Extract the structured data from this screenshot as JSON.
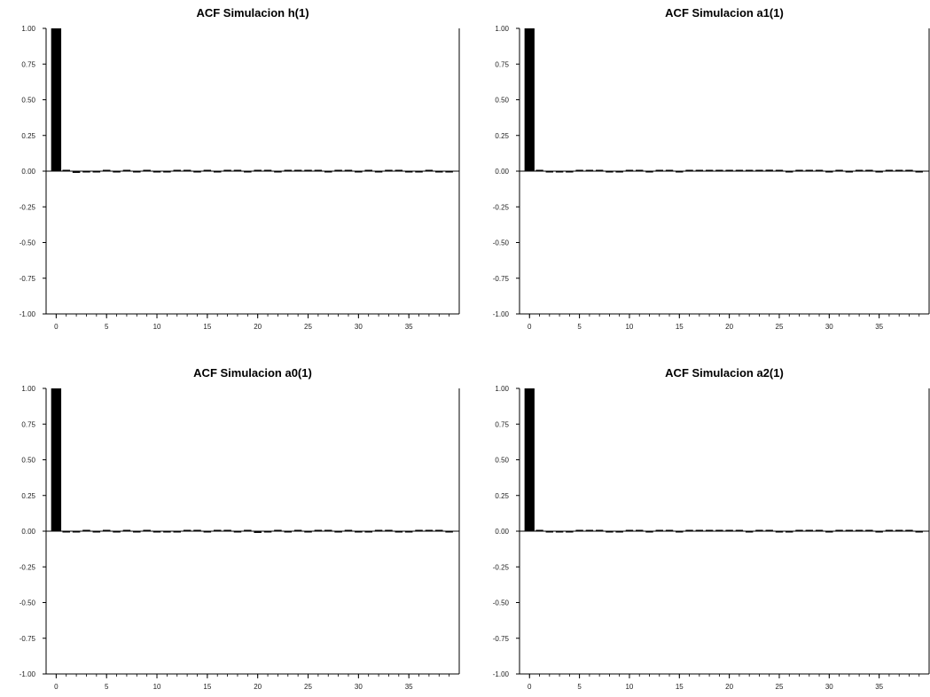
{
  "chart_data": [
    {
      "type": "bar",
      "title": "ACF Simulacion h(1)",
      "xlabel": "",
      "ylabel": "",
      "ylim": [
        -1.0,
        1.0
      ],
      "xlim": [
        -1,
        40
      ],
      "y_ticks": [
        "1.00",
        "0.75",
        "0.50",
        "0.25",
        "0.00",
        "-0.25",
        "-0.50",
        "-0.75",
        "-1.00"
      ],
      "x_ticks": [
        "0",
        "5",
        "10",
        "15",
        "20",
        "25",
        "30",
        "35"
      ],
      "grid": false,
      "lags": [
        0,
        1,
        2,
        3,
        4,
        5,
        6,
        7,
        8,
        9,
        10,
        11,
        12,
        13,
        14,
        15,
        16,
        17,
        18,
        19,
        20,
        21,
        22,
        23,
        24,
        25,
        26,
        27,
        28,
        29,
        30,
        31,
        32,
        33,
        34,
        35,
        36,
        37,
        38,
        39
      ],
      "values": [
        1.0,
        0.006,
        -0.012,
        -0.004,
        -0.003,
        0.004,
        -0.003,
        0.002,
        -0.003,
        0.002,
        -0.003,
        -0.002,
        0.002,
        0.004,
        -0.003,
        0.003,
        -0.004,
        0.002,
        0.003,
        -0.006,
        0.004,
        0.008,
        -0.003,
        0.009,
        0.004,
        0.003,
        0.003,
        -0.002,
        0.004,
        0.003,
        -0.003,
        0.003,
        -0.002,
        0.004,
        0.003,
        -0.002,
        -0.003,
        0.002,
        -0.003,
        -0.002
      ]
    },
    {
      "type": "bar",
      "title": "ACF Simulacion a1(1)",
      "xlabel": "",
      "ylabel": "",
      "ylim": [
        -1.0,
        1.0
      ],
      "xlim": [
        -1,
        40
      ],
      "y_ticks": [
        "1.00",
        "0.75",
        "0.50",
        "0.25",
        "0.00",
        "-0.25",
        "-0.50",
        "-0.75",
        "-1.00"
      ],
      "x_ticks": [
        "0",
        "5",
        "10",
        "15",
        "20",
        "25",
        "30",
        "35"
      ],
      "grid": false,
      "lags": [
        0,
        1,
        2,
        3,
        4,
        5,
        6,
        7,
        8,
        9,
        10,
        11,
        12,
        13,
        14,
        15,
        16,
        17,
        18,
        19,
        20,
        21,
        22,
        23,
        24,
        25,
        26,
        27,
        28,
        29,
        30,
        31,
        32,
        33,
        34,
        35,
        36,
        37,
        38,
        39
      ],
      "values": [
        1.0,
        0.004,
        -0.002,
        -0.003,
        -0.005,
        0.004,
        0.002,
        0.006,
        -0.003,
        -0.006,
        0.003,
        0.005,
        -0.002,
        0.003,
        0.004,
        -0.003,
        0.003,
        0.004,
        0.002,
        0.003,
        0.004,
        0.003,
        0.005,
        0.004,
        0.01,
        0.004,
        -0.003,
        0.003,
        0.002,
        0.003,
        -0.002,
        0.003,
        -0.002,
        0.004,
        0.002,
        -0.003,
        0.003,
        0.004,
        0.002,
        -0.002
      ]
    },
    {
      "type": "bar",
      "title": "ACF Simulacion a0(1)",
      "xlabel": "",
      "ylabel": "",
      "ylim": [
        -1.0,
        1.0
      ],
      "xlim": [
        -1,
        40
      ],
      "y_ticks": [
        "1.00",
        "0.75",
        "0.50",
        "0.25",
        "0.00",
        "-0.25",
        "-0.50",
        "-0.75",
        "-1.00"
      ],
      "x_ticks": [
        "0",
        "5",
        "10",
        "15",
        "20",
        "25",
        "30",
        "35"
      ],
      "grid": false,
      "lags": [
        0,
        1,
        2,
        3,
        4,
        5,
        6,
        7,
        8,
        9,
        10,
        11,
        12,
        13,
        14,
        15,
        16,
        17,
        18,
        19,
        20,
        21,
        22,
        23,
        24,
        25,
        26,
        27,
        28,
        29,
        30,
        31,
        32,
        33,
        34,
        35,
        36,
        37,
        38,
        39
      ],
      "values": [
        1.0,
        -0.003,
        -0.008,
        0.003,
        -0.002,
        0.003,
        -0.003,
        0.008,
        -0.004,
        0.006,
        -0.003,
        -0.005,
        -0.002,
        0.003,
        0.002,
        -0.003,
        0.003,
        0.008,
        -0.002,
        0.003,
        -0.012,
        -0.003,
        0.002,
        -0.004,
        0.003,
        -0.003,
        0.003,
        0.002,
        -0.003,
        0.004,
        -0.007,
        -0.006,
        0.003,
        0.004,
        -0.003,
        -0.004,
        0.003,
        0.006,
        0.004,
        -0.003
      ]
    },
    {
      "type": "bar",
      "title": "ACF Simulacion a2(1)",
      "xlabel": "",
      "ylabel": "",
      "ylim": [
        -1.0,
        1.0
      ],
      "xlim": [
        -1,
        40
      ],
      "y_ticks": [
        "1.00",
        "0.75",
        "0.50",
        "0.25",
        "0.00",
        "-0.25",
        "-0.50",
        "-0.75",
        "-1.00"
      ],
      "x_ticks": [
        "0",
        "5",
        "10",
        "15",
        "20",
        "25",
        "30",
        "35"
      ],
      "grid": false,
      "lags": [
        0,
        1,
        2,
        3,
        4,
        5,
        6,
        7,
        8,
        9,
        10,
        11,
        12,
        13,
        14,
        15,
        16,
        17,
        18,
        19,
        20,
        21,
        22,
        23,
        24,
        25,
        26,
        27,
        28,
        29,
        30,
        31,
        32,
        33,
        34,
        35,
        36,
        37,
        38,
        39
      ],
      "values": [
        1.0,
        0.003,
        -0.003,
        -0.006,
        -0.007,
        0.003,
        0.002,
        0.006,
        -0.003,
        -0.004,
        0.003,
        0.006,
        -0.002,
        0.004,
        0.002,
        -0.003,
        0.003,
        0.002,
        0.003,
        0.005,
        0.002,
        0.004,
        -0.003,
        0.005,
        0.007,
        -0.003,
        -0.004,
        0.003,
        0.002,
        0.004,
        -0.002,
        0.003,
        0.002,
        0.004,
        0.003,
        -0.006,
        0.002,
        0.003,
        0.004,
        -0.002
      ]
    }
  ],
  "colors": {
    "bar": "#000000",
    "axis": "#000000",
    "background": "#ffffff"
  }
}
